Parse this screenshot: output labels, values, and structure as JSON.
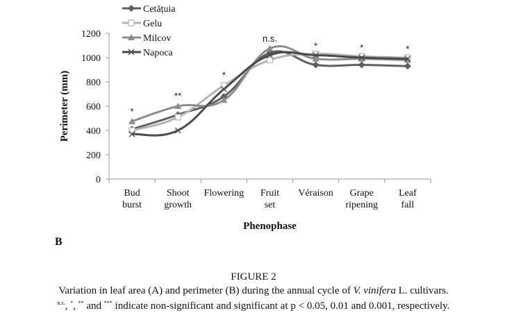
{
  "chart_data": {
    "type": "line",
    "title": "",
    "xlabel": "Phenophase",
    "ylabel": "Perimeter (mm)",
    "ylim": [
      0,
      1200
    ],
    "yticks": [
      0,
      200,
      400,
      600,
      800,
      1000,
      1200
    ],
    "grid": false,
    "legend_position": "top-left",
    "categories": [
      [
        "Bud",
        "burst"
      ],
      [
        "Shoot",
        "growth"
      ],
      [
        "Flowering"
      ],
      [
        "Fruit",
        "set"
      ],
      [
        "Véraison"
      ],
      [
        "Grape",
        "ripening"
      ],
      [
        "Leaf",
        "fall"
      ]
    ],
    "series": [
      {
        "name": "Cetățuia",
        "marker": "diamond",
        "color": "#5f5f5f",
        "values": [
          410,
          530,
          680,
          1040,
          940,
          940,
          930
        ]
      },
      {
        "name": "Gelu",
        "marker": "square-open",
        "color": "#b3b3b3",
        "values": [
          400,
          510,
          770,
          980,
          1030,
          1010,
          1000
        ]
      },
      {
        "name": "Milcov",
        "marker": "triangle",
        "color": "#8c8c8c",
        "values": [
          475,
          600,
          650,
          1075,
          990,
          990,
          980
        ]
      },
      {
        "name": "Napoca",
        "marker": "x",
        "color": "#4a4a4a",
        "values": [
          370,
          400,
          740,
          1020,
          1020,
          1000,
          990
        ]
      }
    ],
    "annotations": [
      {
        "category_index": 0,
        "text": "*",
        "y": 560
      },
      {
        "category_index": 1,
        "text": "**",
        "y": 690
      },
      {
        "category_index": 2,
        "text": "*",
        "y": 860
      },
      {
        "category_index": 3,
        "text": "n.s.",
        "y": 1160
      },
      {
        "category_index": 4,
        "text": "*",
        "y": 1100
      },
      {
        "category_index": 5,
        "text": "*",
        "y": 1085
      },
      {
        "category_index": 6,
        "text": "*",
        "y": 1075
      }
    ]
  },
  "panel_label": "B",
  "figure_title": "FIGURE 2",
  "caption": {
    "line1_before": "Variation in leaf area (A) and perimeter (B) during the annual cycle of ",
    "line1_italic": "V. vinifera",
    "line1_after": " L. cultivars.",
    "line2_sup1": "n.s.",
    "line2_sep1": ", ",
    "line2_sup2": "*",
    "line2_sep2": ", ",
    "line2_sup3": "**",
    "line2_mid": " and ",
    "line2_sup4": "***",
    "line2_after": " indicate non-significant and significant at p < 0.05, 0.01 and 0.001, respectively."
  }
}
